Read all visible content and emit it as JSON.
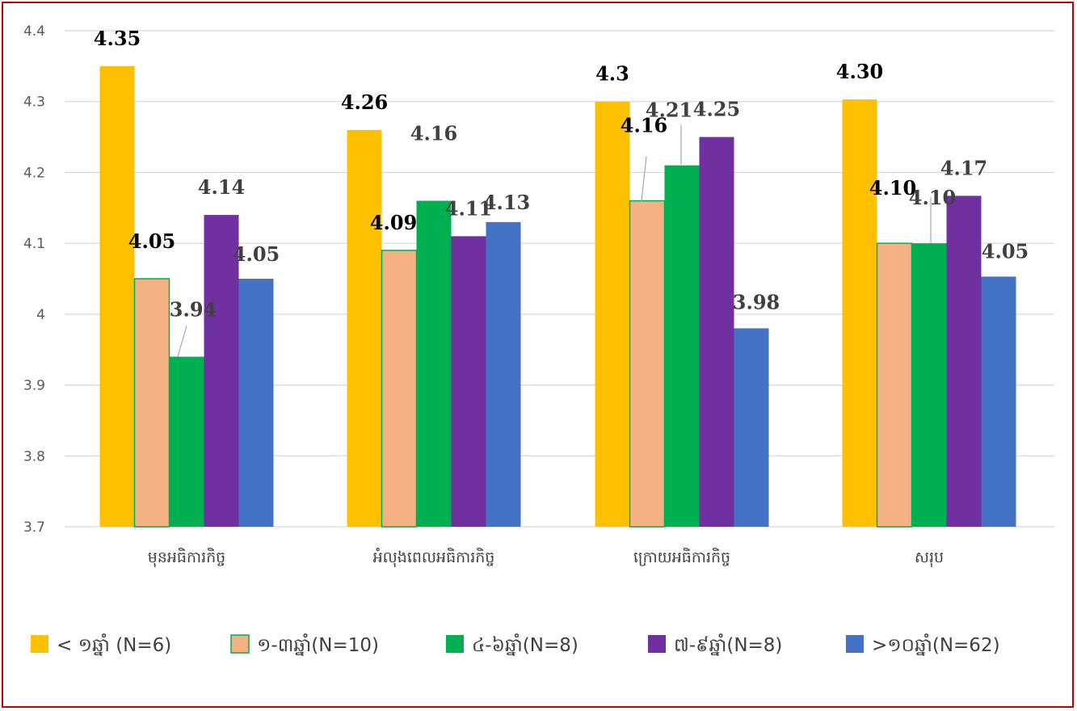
{
  "chart_data": {
    "type": "bar",
    "categories": [
      "មុនអធិការកិច្ច",
      "អំលុងពេលអធិការកិច្ច",
      "ក្រោយអធិការកិច្ច",
      "សរុប"
    ],
    "ylim": [
      3.7,
      4.4
    ],
    "yticks": [
      "3.7",
      "3.8",
      "3.9",
      "4",
      "4.1",
      "4.2",
      "4.3",
      "4.4"
    ],
    "grid": true,
    "legend_position": "bottom",
    "series": [
      {
        "name": "< ១ឆ្នាំ (N=6)",
        "color": "#ffc000",
        "values": [
          4.35,
          4.26,
          4.3,
          4.303
        ],
        "labels": [
          "4.35",
          "4.26",
          "4.3",
          "4.30"
        ]
      },
      {
        "name": "១-៣ឆ្នាំ(N=10)",
        "color": "#f4b183",
        "values": [
          4.05,
          4.09,
          4.16,
          4.1
        ],
        "labels": [
          "4.05",
          "4.09",
          "4.16",
          "4.10"
        ]
      },
      {
        "name": "៤-៦ឆ្នាំ(N=8)",
        "color": "#00b050",
        "values": [
          3.94,
          4.16,
          4.21,
          4.1
        ],
        "labels": [
          "3.94",
          "4.16",
          "4.21",
          "4.10"
        ]
      },
      {
        "name": "៧-៩ឆ្នាំ(N=8)",
        "color": "#7030a0",
        "values": [
          4.14,
          4.11,
          4.25,
          4.167
        ],
        "labels": [
          "4.14",
          "4.11",
          "4.25",
          "4.17"
        ]
      },
      {
        "name": ">១០ឆ្នាំ(N=62)",
        "color": "#4472c4",
        "values": [
          4.05,
          4.13,
          3.98,
          4.053
        ],
        "labels": [
          "4.05",
          "4.13",
          "3.98",
          "4.05"
        ]
      }
    ]
  }
}
